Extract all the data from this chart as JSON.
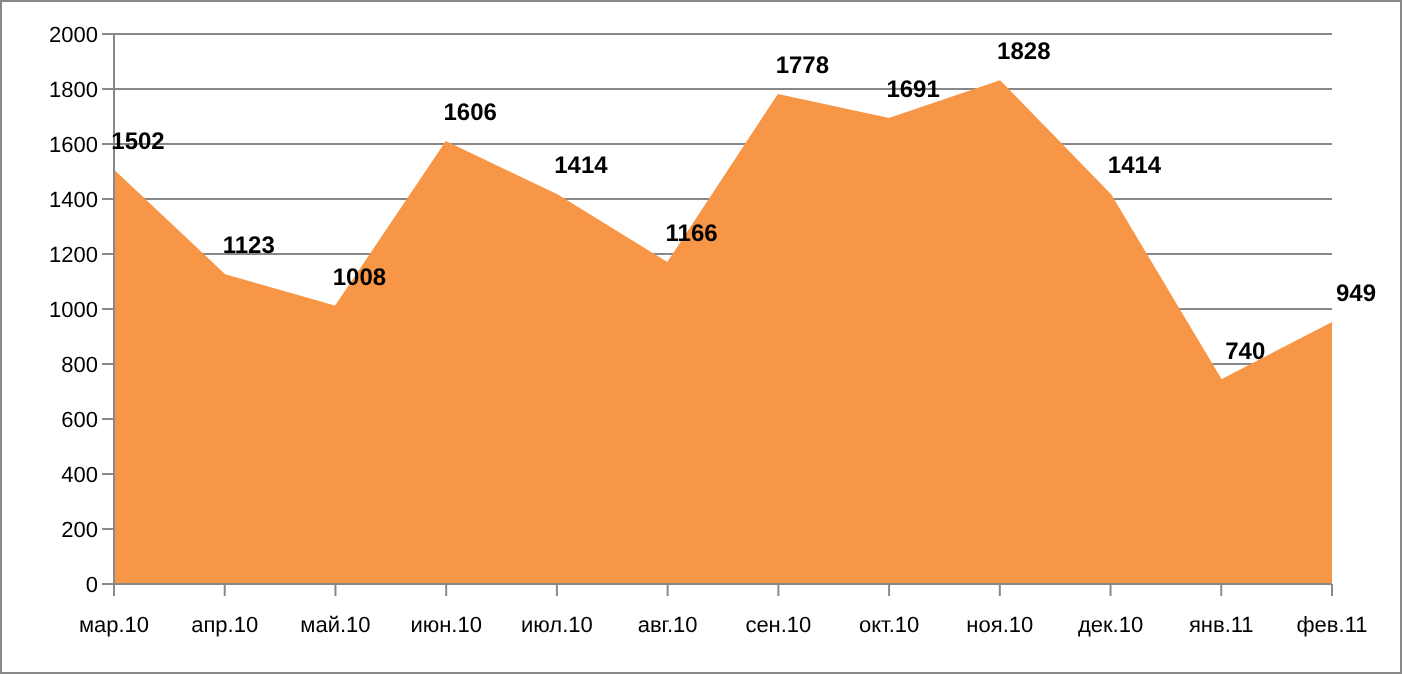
{
  "chart_data": {
    "type": "area",
    "categories": [
      "мар.10",
      "апр.10",
      "май.10",
      "июн.10",
      "июл.10",
      "авг.10",
      "сен.10",
      "окт.10",
      "ноя.10",
      "дек.10",
      "янв.11",
      "фев.11"
    ],
    "values": [
      1502,
      1123,
      1008,
      1606,
      1414,
      1166,
      1778,
      1691,
      1828,
      1414,
      740,
      949
    ],
    "color": "#f79646",
    "ylim": [
      0,
      2000
    ],
    "yticks": [
      0,
      200,
      400,
      600,
      800,
      1000,
      1200,
      1400,
      1600,
      1800,
      2000
    ],
    "grid": "y",
    "data_labels": true
  }
}
